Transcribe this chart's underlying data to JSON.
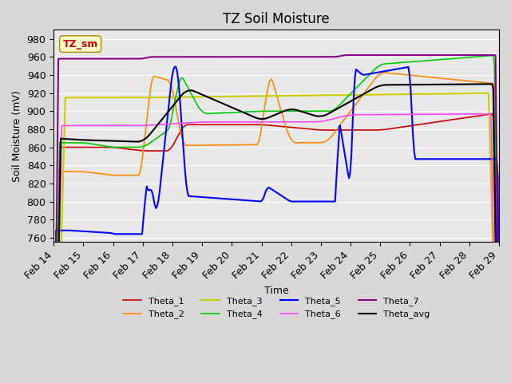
{
  "title": "TZ Soil Moisture",
  "xlabel": "Time",
  "ylabel": "Soil Moisture (mV)",
  "ylim": [
    755,
    990
  ],
  "yticks": [
    760,
    780,
    800,
    820,
    840,
    860,
    880,
    900,
    920,
    940,
    960,
    980
  ],
  "date_labels": [
    "Feb 14",
    "Feb 15",
    "Feb 16",
    "Feb 17",
    "Feb 18",
    "Feb 19",
    "Feb 20",
    "Feb 21",
    "Feb 22",
    "Feb 23",
    "Feb 24",
    "Feb 25",
    "Feb 26",
    "Feb 27",
    "Feb 28",
    "Feb 29"
  ],
  "annotation_label": "TZ_sm",
  "annotation_color": "#cc0000",
  "annotation_bg": "#ffffcc",
  "title_fontsize": 12,
  "axis_fontsize": 9,
  "legend_fontsize": 8,
  "line_colors": {
    "Theta_1": "#cc0000",
    "Theta_2": "#ff8800",
    "Theta_3": "#cccc00",
    "Theta_4": "#00cc00",
    "Theta_5": "#0000ff",
    "Theta_6": "#ff44ff",
    "Theta_7": "#880088",
    "Theta_avg": "#000000"
  }
}
